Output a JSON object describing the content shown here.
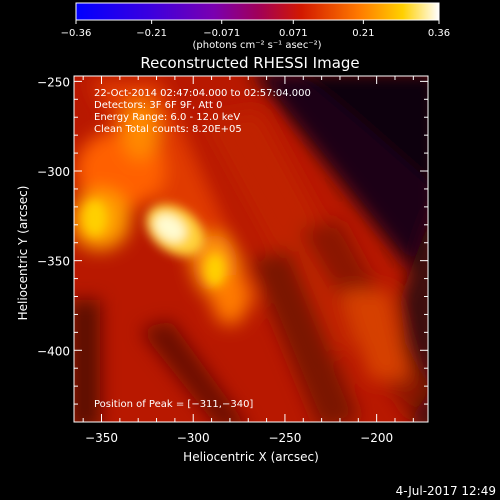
{
  "chart_data": {
    "type": "heatmap",
    "title": "Reconstructed RHESSI Image",
    "xlabel": "Heliocentric X (arcsec)",
    "ylabel": "Heliocentric Y (arcsec)",
    "xlim": [
      -365,
      -172
    ],
    "ylim": [
      -440,
      -247
    ],
    "xticks": [
      -350,
      -300,
      -250,
      -200
    ],
    "yticks": [
      -250,
      -300,
      -350,
      -400
    ],
    "xtick_labels": [
      "−350",
      "−300",
      "−250",
      "−200"
    ],
    "ytick_labels": [
      "−250",
      "−300",
      "−350",
      "−400"
    ],
    "colorbar": {
      "range": [
        -0.36,
        0.36
      ],
      "ticks": [
        -0.36,
        -0.21,
        -0.071,
        0.071,
        0.21,
        0.36
      ],
      "tick_labels": [
        "−0.36",
        "−0.21",
        "−0.071",
        "0.071",
        "0.21",
        "0.36"
      ],
      "unit_label": "(photons cm⁻² s⁻¹ asec⁻²)",
      "colormap": "blue-purple-red-orange-yellow-white"
    },
    "annotations": [
      "22-Oct-2014 02:47:04.000 to 02:57:04.000",
      "Detectors: 3F 6F 9F, Att 0",
      "Energy Range: 6.0 - 12.0 keV",
      "Clean     Total counts: 8.20E+05"
    ],
    "peak_label": "Position of Peak = [−311,−340]",
    "peak": {
      "x": -311,
      "y": -340,
      "value": 0.36
    }
  },
  "footer": {
    "date": "4-Jul-2017 12:49"
  }
}
